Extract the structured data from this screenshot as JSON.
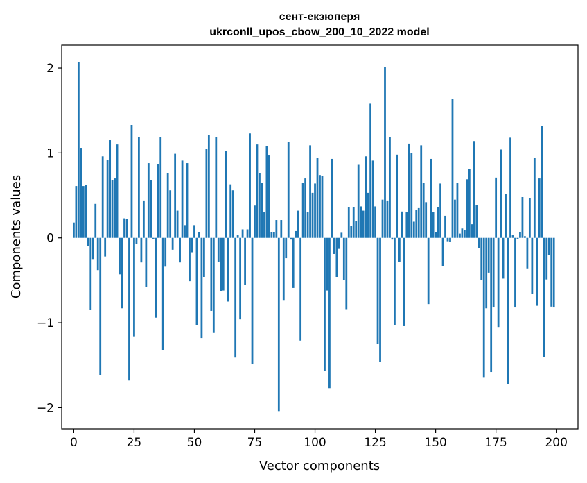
{
  "chart_data": {
    "type": "bar",
    "title": "сент-екзюперя",
    "subtitle": "ukrconll_upos_cbow_200_10_2022 model",
    "xlabel": "Vector components",
    "ylabel": "Components values",
    "xlim": [
      -5,
      209
    ],
    "ylim": [
      -2.25,
      2.27
    ],
    "xticks": [
      0,
      25,
      50,
      75,
      100,
      125,
      150,
      175,
      200
    ],
    "yticks": [
      -2,
      -1,
      0,
      1,
      2
    ],
    "ytick_labels": [
      "−2",
      "−1",
      "0",
      "1",
      "2"
    ],
    "bar_color": "#1f77b4",
    "series": [
      {
        "name": "components",
        "values": [
          0.18,
          0.61,
          2.07,
          1.06,
          0.61,
          0.62,
          -0.1,
          -0.85,
          -0.25,
          0.4,
          -0.38,
          -1.62,
          0.96,
          -0.22,
          0.92,
          1.15,
          0.68,
          0.7,
          1.1,
          -0.43,
          -0.83,
          0.23,
          0.22,
          -1.68,
          1.33,
          -1.16,
          -0.07,
          1.19,
          -0.29,
          0.44,
          -0.58,
          0.88,
          0.68,
          -0.01,
          -0.94,
          0.87,
          1.19,
          -1.32,
          -0.34,
          0.76,
          0.56,
          -0.14,
          0.99,
          0.32,
          -0.29,
          0.91,
          0.15,
          0.88,
          -0.51,
          -0.17,
          0.15,
          -1.03,
          0.07,
          -1.18,
          -0.46,
          1.05,
          1.21,
          -0.86,
          -1.12,
          1.19,
          -0.28,
          -0.63,
          -0.62,
          1.02,
          -0.75,
          0.63,
          0.56,
          -1.41,
          0.03,
          -0.96,
          0.1,
          -0.55,
          0.1,
          1.23,
          -1.49,
          0.38,
          1.1,
          0.76,
          0.65,
          0.3,
          1.08,
          0.97,
          0.07,
          0.07,
          0.21,
          -2.04,
          0.21,
          -0.74,
          -0.24,
          1.13,
          -0.02,
          -0.59,
          0.08,
          0.32,
          -1.21,
          0.65,
          0.7,
          0.3,
          1.09,
          0.53,
          0.64,
          0.94,
          0.74,
          0.73,
          -1.57,
          -0.62,
          -1.77,
          0.93,
          -0.19,
          -0.46,
          -0.13,
          0.06,
          -0.5,
          -0.84,
          0.36,
          0.14,
          0.36,
          0.2,
          0.86,
          0.37,
          0.32,
          0.96,
          0.53,
          1.58,
          0.91,
          0.37,
          -1.25,
          -1.46,
          0.45,
          2.01,
          0.44,
          1.19,
          -0.02,
          -1.03,
          0.98,
          -0.28,
          0.31,
          -1.04,
          0.3,
          1.11,
          1.0,
          0.19,
          0.33,
          0.35,
          1.09,
          0.65,
          0.42,
          -0.78,
          0.93,
          0.3,
          0.07,
          0.36,
          0.64,
          -0.33,
          0.26,
          -0.04,
          -0.05,
          1.64,
          0.45,
          0.65,
          0.05,
          0.11,
          0.09,
          0.69,
          0.81,
          0.16,
          1.14,
          0.39,
          -0.12,
          -0.5,
          -1.64,
          -0.83,
          -0.41,
          -1.58,
          -0.82,
          0.71,
          -1.05,
          1.04,
          -0.48,
          0.52,
          -1.72,
          1.18,
          0.03,
          -0.82,
          -0.01,
          0.07,
          0.48,
          0.02,
          -0.36,
          0.47,
          -0.66,
          0.94,
          -0.8,
          0.7,
          1.32,
          -1.4,
          -0.49,
          -0.2,
          -0.81,
          -0.82
        ]
      }
    ]
  }
}
